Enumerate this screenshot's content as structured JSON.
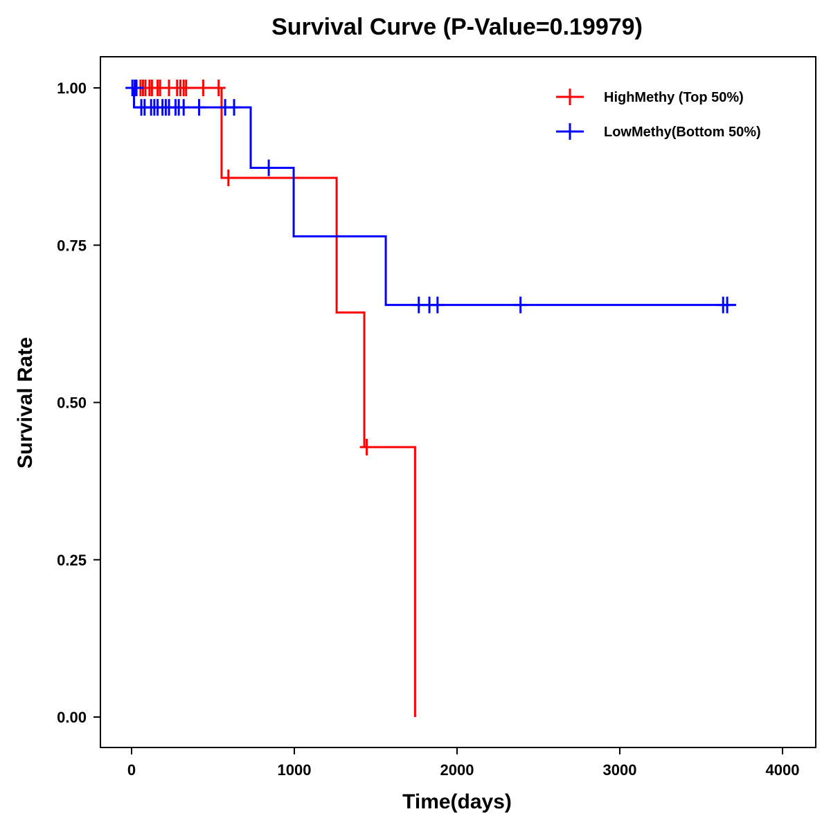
{
  "chart_data": {
    "type": "line",
    "title": "Survival Curve (P-Value=0.19979)",
    "xlabel": "Time(days)",
    "ylabel": "Survival Rate",
    "xlim": [
      -200,
      4200
    ],
    "ylim": [
      -0.05,
      1.05
    ],
    "xticks": [
      0,
      1000,
      2000,
      3000,
      4000
    ],
    "xtick_labels": [
      "0",
      "1000",
      "2000",
      "3000",
      "4000"
    ],
    "yticks": [
      0,
      0.25,
      0.5,
      0.75,
      1.0
    ],
    "ytick_labels": [
      "0.00",
      "0.25",
      "0.50",
      "0.75",
      "1.00"
    ],
    "grid": false,
    "legend_position": "top-right",
    "series": [
      {
        "name": "HighMethy (Top 50%)",
        "color": "#ff0000",
        "steps": [
          [
            0,
            1.0
          ],
          [
            553,
            0.857
          ],
          [
            1260,
            0.643
          ],
          [
            1430,
            0.429
          ],
          [
            1742,
            0.0
          ]
        ],
        "end": 1742,
        "censors": [
          [
            20,
            1.0
          ],
          [
            55,
            1.0
          ],
          [
            70,
            1.0
          ],
          [
            85,
            1.0
          ],
          [
            110,
            1.0
          ],
          [
            125,
            1.0
          ],
          [
            160,
            1.0
          ],
          [
            175,
            1.0
          ],
          [
            230,
            1.0
          ],
          [
            280,
            1.0
          ],
          [
            300,
            1.0
          ],
          [
            320,
            1.0
          ],
          [
            335,
            1.0
          ],
          [
            440,
            1.0
          ],
          [
            535,
            1.0
          ],
          [
            595,
            0.857
          ],
          [
            1445,
            0.429
          ]
        ]
      },
      {
        "name": "LowMethy(Bottom 50%)",
        "color": "#0000ff",
        "steps": [
          [
            0,
            1.0
          ],
          [
            15,
            0.969
          ],
          [
            732,
            0.873
          ],
          [
            996,
            0.764
          ],
          [
            1562,
            0.655
          ]
        ],
        "end": 3715,
        "censors": [
          [
            5,
            1.0
          ],
          [
            20,
            1.0
          ],
          [
            30,
            1.0
          ],
          [
            60,
            0.969
          ],
          [
            80,
            0.969
          ],
          [
            120,
            0.969
          ],
          [
            140,
            0.969
          ],
          [
            160,
            0.969
          ],
          [
            190,
            0.969
          ],
          [
            210,
            0.969
          ],
          [
            230,
            0.969
          ],
          [
            270,
            0.969
          ],
          [
            290,
            0.969
          ],
          [
            320,
            0.969
          ],
          [
            415,
            0.969
          ],
          [
            575,
            0.969
          ],
          [
            630,
            0.969
          ],
          [
            843,
            0.873
          ],
          [
            1765,
            0.655
          ],
          [
            1830,
            0.655
          ],
          [
            1880,
            0.655
          ],
          [
            2390,
            0.655
          ],
          [
            3635,
            0.655
          ],
          [
            3660,
            0.655
          ]
        ]
      }
    ]
  }
}
